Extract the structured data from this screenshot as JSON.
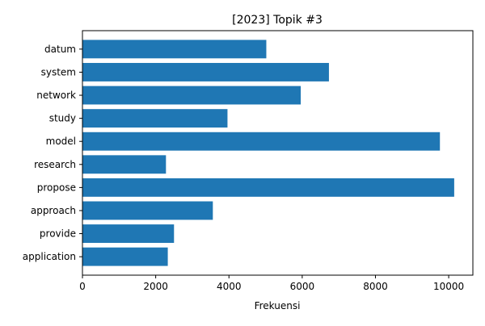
{
  "chart_data": {
    "type": "bar",
    "orientation": "horizontal",
    "title": "[2023] Topik #3",
    "xlabel": "Frekuensi",
    "ylabel": "",
    "categories": [
      "datum",
      "system",
      "network",
      "study",
      "model",
      "research",
      "propose",
      "approach",
      "provide",
      "application"
    ],
    "values": [
      5020,
      6730,
      5960,
      3960,
      9760,
      2280,
      10150,
      3560,
      2500,
      2330
    ],
    "xlim": [
      0,
      10660
    ],
    "xticks": [
      0,
      2000,
      4000,
      6000,
      8000,
      10000
    ],
    "xtick_labels": [
      "0",
      "2000",
      "4000",
      "6000",
      "8000",
      "10000"
    ],
    "grid": false,
    "legend": "none",
    "bar_color": "#1f77b4"
  }
}
